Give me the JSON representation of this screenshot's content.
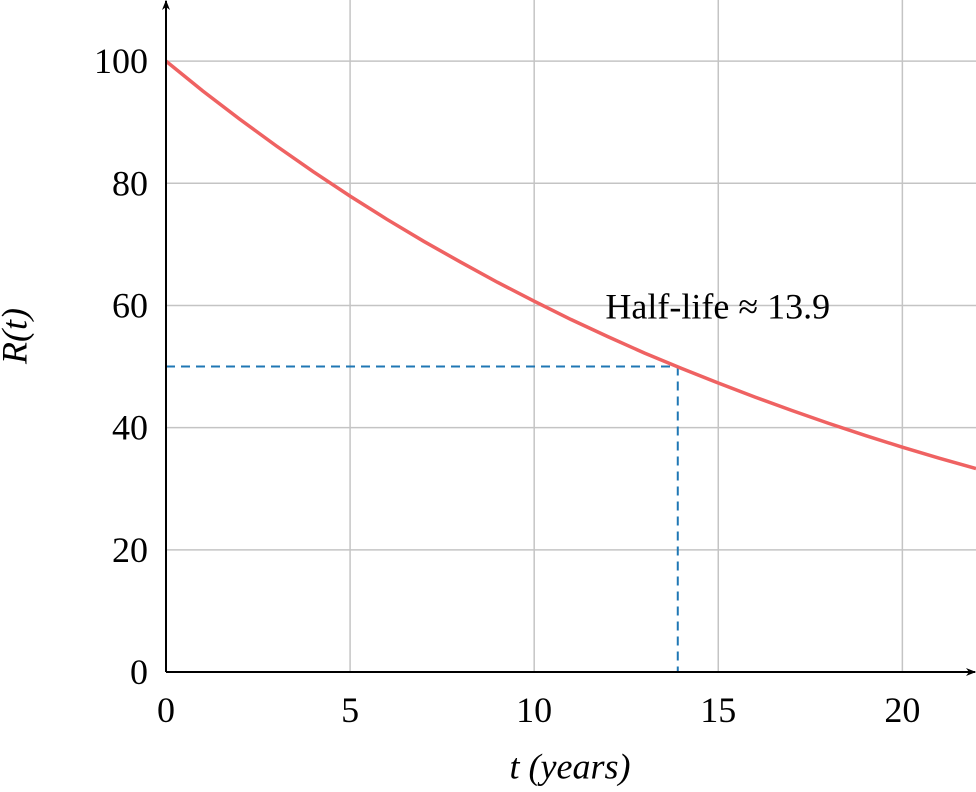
{
  "chart_data": {
    "type": "line",
    "x_label": "t (years)",
    "y_label": "R(t)",
    "x": [
      0,
      1,
      2,
      3,
      4,
      5,
      6,
      7,
      8,
      9,
      10,
      11,
      12,
      13,
      14,
      15,
      16,
      17,
      18,
      19,
      20,
      21,
      22
    ],
    "series": [
      {
        "color": "#ef6262",
        "values": [
          100,
          95.1,
          90.5,
          86.1,
          81.9,
          77.9,
          74.1,
          70.5,
          67.1,
          63.8,
          60.7,
          57.7,
          54.9,
          52.2,
          49.7,
          47.3,
          45.0,
          42.8,
          40.7,
          38.7,
          36.8,
          35.0,
          33.3
        ]
      }
    ],
    "xlim": [
      0,
      22
    ],
    "ylim": [
      0,
      110
    ],
    "xticks": [
      0,
      5,
      10,
      15,
      20
    ],
    "yticks": [
      0,
      20,
      40,
      60,
      80,
      100
    ],
    "grid": true,
    "annotation": {
      "text": "Half-life ≈ 13.9",
      "x": 13.9,
      "y": 50,
      "color": "#1f77b4"
    }
  }
}
